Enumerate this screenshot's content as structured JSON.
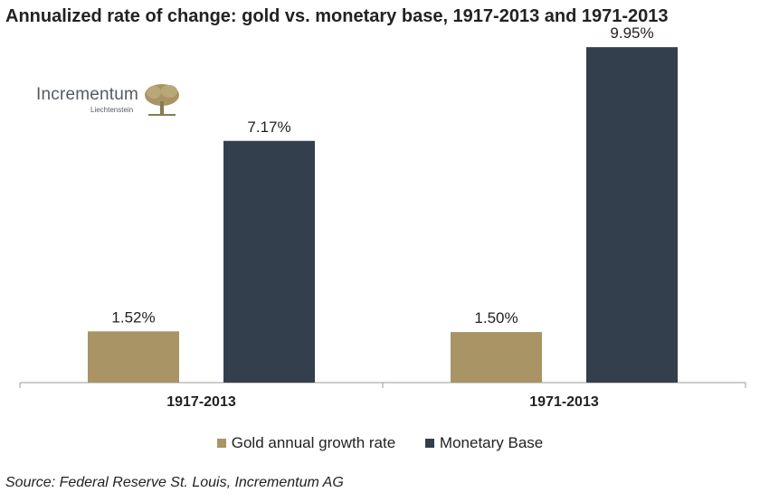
{
  "title": "Annualized rate of change: gold vs. monetary base, 1917-2013 and 1971-2013",
  "logo": {
    "name": "Incrementum",
    "sub": "Liechtenstein"
  },
  "source": "Source: Federal Reserve St. Louis, Incrementum AG",
  "colors": {
    "gold": "#a89465",
    "monetary": "#333f4d",
    "axis": "#9a9a9a"
  },
  "chart_data": {
    "type": "bar",
    "categories": [
      "1917-2013",
      "1971-2013"
    ],
    "series": [
      {
        "name": "Gold annual growth rate",
        "values": [
          1.52,
          1.5
        ],
        "labels": [
          "1.52%",
          "1.50%"
        ]
      },
      {
        "name": "Monetary Base",
        "values": [
          7.17,
          9.95
        ],
        "labels": [
          "7.17%",
          "9.95%"
        ]
      }
    ],
    "ylim": [
      0,
      11
    ],
    "grid": false,
    "legend": "bottom"
  }
}
